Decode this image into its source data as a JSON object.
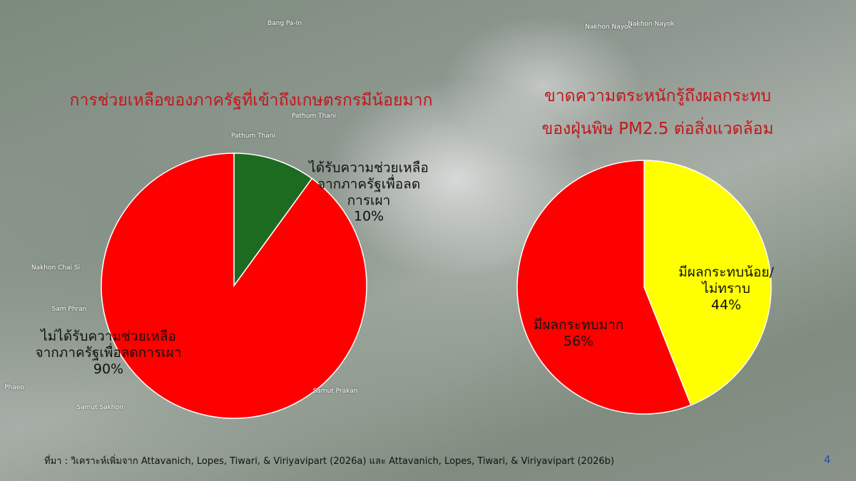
{
  "chart_data": [
    {
      "type": "pie",
      "title": [
        "การช่วยเหลือของภาครัฐที่เข้าถึงเกษตรกรมีน้อยมาก"
      ],
      "categories": [
        "ได้รับความช่วยเหลือจากภาครัฐเพื่อลดการเผา",
        "ไม่ได้รับความช่วยเหลือจากภาครัฐเพื่อลดการเผา"
      ],
      "values": [
        10,
        90
      ],
      "value_labels": [
        "10%",
        "90%"
      ],
      "colors": [
        "#1d6b20",
        "#ff0000"
      ]
    },
    {
      "type": "pie",
      "title": [
        "ขาดความตระหนักรู้ถึงผลกระทบ",
        "ของฝุ่นพิษ PM2.5 ต่อสิ่งแวดล้อม"
      ],
      "categories": [
        "มีผลกระทบน้อย/ไม่ทราบ",
        "มีผลกระทบมาก"
      ],
      "values": [
        44,
        56
      ],
      "value_labels": [
        "44%",
        "56%"
      ],
      "colors": [
        "#ffff00",
        "#ff0000"
      ]
    }
  ],
  "source": "ที่มา : วิเคราะห์เพิ่มจาก Attavanich, Lopes, Tiwari, & Viriyavipart (2026a) และ Attavanich, Lopes, Tiwari, & Viriyavipart (2026b)",
  "page_number": "4",
  "map_labels": [
    "Bang Pa-In",
    "Nakhon Nayok",
    "Nakhon Nayok",
    "Pathum Thani",
    "Pathum Thani",
    "Nakhon Chai Si",
    "Sam Phran",
    "Samut Prakan",
    "Samut Sakhon",
    "Phaeo"
  ]
}
